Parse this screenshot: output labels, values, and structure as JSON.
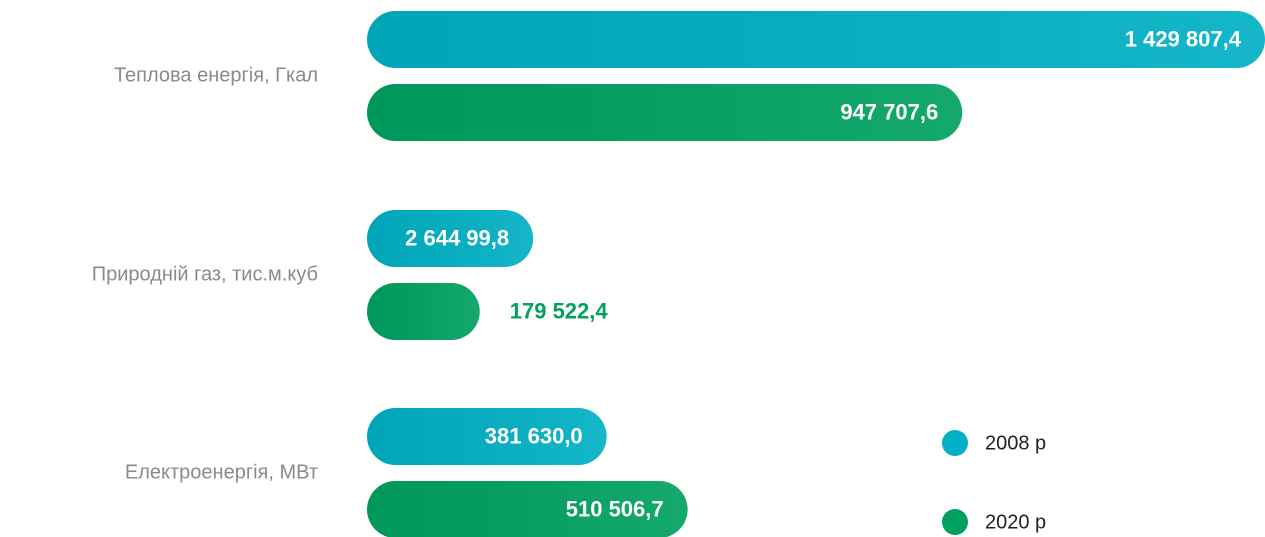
{
  "chart_data": {
    "type": "bar",
    "orientation": "horizontal",
    "categories": [
      "Теплова енергія, Гкал",
      "Природній газ, тис.м.куб",
      "Електроенергія, МВт"
    ],
    "series": [
      {
        "name": "2008 р",
        "color": "#00b0c4",
        "values": [
          1429807.4,
          264499.8,
          381630.0
        ],
        "value_labels": [
          "1 429 807,4",
          "2 644 99,8",
          "381 630,0"
        ]
      },
      {
        "name": "2020 р",
        "color": "#00a160",
        "values": [
          947707.6,
          179522.4,
          510506.7
        ],
        "value_labels": [
          "947 707,6",
          "179 522,4",
          "510 506,7"
        ]
      }
    ]
  }
}
